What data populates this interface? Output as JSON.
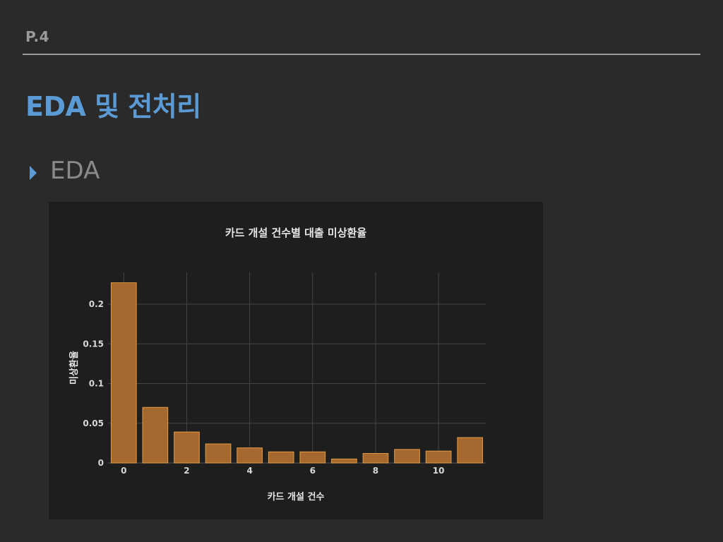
{
  "header": {
    "page_number": "P.4",
    "title": "EDA 및 전처리"
  },
  "section": {
    "label": "EDA"
  },
  "colors": {
    "accent": "#5b9bd5",
    "bar_fill": "#a5692f",
    "bar_stroke": "#e39a44",
    "grid": "#444444",
    "panel_bg": "#1e1e1e"
  },
  "chart_data": {
    "type": "bar",
    "title": "카드 개설 건수별 대출 미상환율",
    "xlabel": "카드 개설 건수",
    "ylabel": "미상환율",
    "x": [
      0,
      1,
      2,
      3,
      4,
      5,
      6,
      7,
      8,
      9,
      10,
      11
    ],
    "values": [
      0.227,
      0.07,
      0.039,
      0.024,
      0.019,
      0.014,
      0.014,
      0.005,
      0.012,
      0.017,
      0.015,
      0.032
    ],
    "xlim": [
      -0.5,
      11.5
    ],
    "ylim": [
      0,
      0.24
    ],
    "xticks": [
      0,
      2,
      4,
      6,
      8,
      10
    ],
    "xtick_labels": [
      "0",
      "2",
      "4",
      "6",
      "8",
      "10"
    ],
    "yticks": [
      0,
      0.05,
      0.1,
      0.15,
      0.2
    ],
    "ytick_labels": [
      "0",
      "0.05",
      "0.1",
      "0.15",
      "0.2"
    ],
    "grid": true,
    "legend": "none"
  }
}
